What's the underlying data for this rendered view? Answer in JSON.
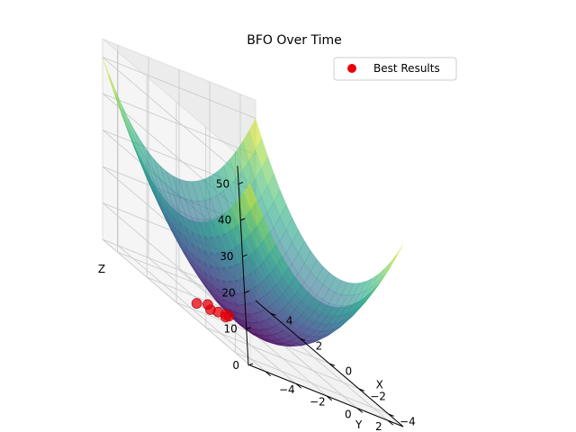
{
  "chart_data": {
    "type": "surface3d+scatter",
    "title": "BFO Over Time",
    "xlabel": "X",
    "ylabel": "Y",
    "zlabel": "Z",
    "x_ticks": [
      "−4",
      "−2",
      "0",
      "2",
      "4"
    ],
    "y_ticks": [
      "−4",
      "−2",
      "0",
      "2",
      "4"
    ],
    "z_ticks": [
      "0",
      "10",
      "20",
      "30",
      "40",
      "50"
    ],
    "xlim": [
      -5,
      5
    ],
    "ylim": [
      -5,
      5
    ],
    "zlim": [
      0,
      50
    ],
    "surface": "z = x^2 + y^2",
    "surface_colormap": "viridis",
    "legend": {
      "position": "top-right",
      "entries": [
        {
          "label": "Best Results",
          "color": "#e8000b"
        }
      ]
    },
    "scatter": {
      "name": "Best Results",
      "color": "#e8000b",
      "points": [
        {
          "x": 0.9,
          "y": -2.8,
          "z": 0.3
        },
        {
          "x": 0.8,
          "y": -2.0,
          "z": 0.3
        },
        {
          "x": 0.9,
          "y": -1.4,
          "z": 0.3
        },
        {
          "x": 0.9,
          "y": -0.7,
          "z": 0.3
        },
        {
          "x": 1.0,
          "y": -0.8,
          "z": 0.3
        },
        {
          "x": 0.6,
          "y": -1.2,
          "z": 0.3
        },
        {
          "x": 1.4,
          "y": -1.6,
          "z": 0.3
        }
      ]
    },
    "grid": true
  }
}
